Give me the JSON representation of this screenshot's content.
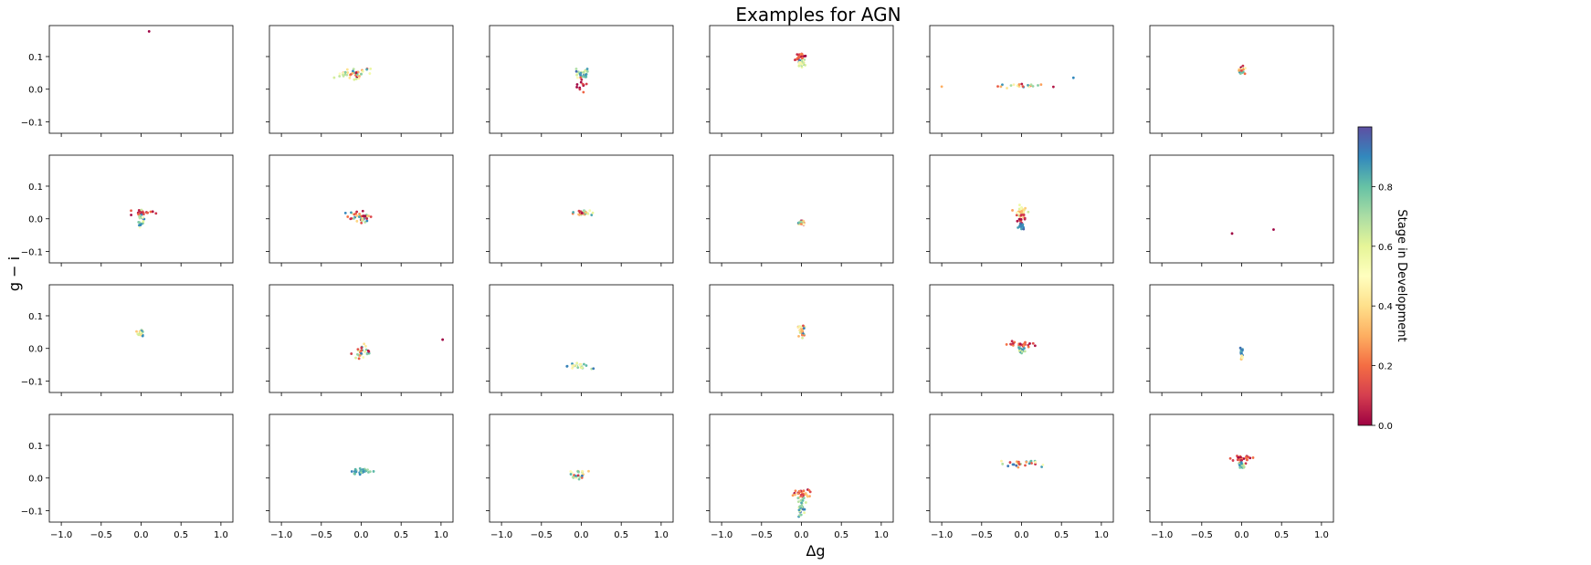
{
  "figure": {
    "title": "Examples for AGN",
    "xlabel": "Δg",
    "ylabel": "g − i",
    "colorbar_label": "Stage in Development"
  },
  "chart_data": {
    "type": "scatter",
    "title": "Examples for AGN",
    "xlabel": "Δg",
    "ylabel": "g − i",
    "layout": {
      "rows": 4,
      "cols": 6
    },
    "xlim": [
      -1.15,
      1.15
    ],
    "ylim": [
      -0.135,
      0.195
    ],
    "xticks": [
      -1.0,
      -0.5,
      0.0,
      0.5,
      1.0
    ],
    "xtick_labels": [
      "−1.0",
      "−0.5",
      "0.0",
      "0.5",
      "1.0"
    ],
    "yticks": [
      -0.1,
      0.0,
      0.1
    ],
    "ytick_labels": [
      "−0.1",
      "0.0",
      "0.1"
    ],
    "colormap": "Spectral",
    "colormap_stops": [
      "#9e0142",
      "#d53e4f",
      "#f46d43",
      "#fdae61",
      "#fee08b",
      "#ffffbf",
      "#e6f598",
      "#abdda4",
      "#66c2a5",
      "#3288bd",
      "#5e4fa2"
    ],
    "colorbar": {
      "label": "Stage in Development",
      "range": [
        0.0,
        1.0
      ],
      "ticks": [
        0.0,
        0.2,
        0.4,
        0.6,
        0.8
      ],
      "tick_labels": [
        "0.0",
        "0.2",
        "0.4",
        "0.6",
        "0.8"
      ]
    },
    "panels": [
      {
        "clusters": [
          {
            "x": 0.1,
            "y": 0.177,
            "sx": 0.0,
            "sy": 0.0,
            "n": 1,
            "c0": 0.0,
            "c1": 0.0
          }
        ]
      },
      {
        "clusters": [
          {
            "x": -0.05,
            "y": 0.048,
            "sx": 0.22,
            "sy": 0.01,
            "n": 40,
            "c0": 0.0,
            "c1": 0.95
          }
        ]
      },
      {
        "clusters": [
          {
            "x": 0.0,
            "y": 0.045,
            "sx": 0.1,
            "sy": 0.008,
            "n": 28,
            "c0": 0.5,
            "c1": 0.95
          },
          {
            "x": 0.0,
            "y": 0.012,
            "sx": 0.06,
            "sy": 0.01,
            "n": 12,
            "c0": 0.0,
            "c1": 0.2
          }
        ]
      },
      {
        "clusters": [
          {
            "x": 0.0,
            "y": 0.1,
            "sx": 0.07,
            "sy": 0.006,
            "n": 20,
            "c0": 0.0,
            "c1": 0.25
          },
          {
            "x": 0.0,
            "y": 0.08,
            "sx": 0.05,
            "sy": 0.007,
            "n": 25,
            "c0": 0.3,
            "c1": 0.95
          }
        ]
      },
      {
        "clusters": [
          {
            "x": -0.05,
            "y": 0.012,
            "sx": 0.3,
            "sy": 0.004,
            "n": 20,
            "c0": 0.0,
            "c1": 0.95
          },
          {
            "x": -1.0,
            "y": 0.008,
            "sx": 0.0,
            "sy": 0.0,
            "n": 1,
            "c0": 0.3,
            "c1": 0.3
          },
          {
            "x": 0.65,
            "y": 0.035,
            "sx": 0.0,
            "sy": 0.0,
            "n": 1,
            "c0": 0.9,
            "c1": 0.9
          }
        ]
      },
      {
        "clusters": [
          {
            "x": 0.0,
            "y": 0.058,
            "sx": 0.04,
            "sy": 0.005,
            "n": 18,
            "c0": 0.0,
            "c1": 0.95
          }
        ]
      },
      {
        "clusters": [
          {
            "x": 0.02,
            "y": 0.018,
            "sx": 0.12,
            "sy": 0.005,
            "n": 20,
            "c0": 0.0,
            "c1": 0.2
          },
          {
            "x": 0.0,
            "y": -0.005,
            "sx": 0.05,
            "sy": 0.01,
            "n": 25,
            "c0": 0.5,
            "c1": 0.95
          }
        ]
      },
      {
        "clusters": [
          {
            "x": 0.0,
            "y": 0.005,
            "sx": 0.15,
            "sy": 0.008,
            "n": 45,
            "c0": 0.0,
            "c1": 0.95
          }
        ]
      },
      {
        "clusters": [
          {
            "x": 0.0,
            "y": 0.018,
            "sx": 0.15,
            "sy": 0.004,
            "n": 30,
            "c0": 0.0,
            "c1": 0.95
          }
        ]
      },
      {
        "clusters": [
          {
            "x": 0.0,
            "y": -0.012,
            "sx": 0.05,
            "sy": 0.004,
            "n": 18,
            "c0": 0.0,
            "c1": 0.95
          }
        ]
      },
      {
        "clusters": [
          {
            "x": 0.0,
            "y": 0.022,
            "sx": 0.08,
            "sy": 0.008,
            "n": 25,
            "c0": 0.25,
            "c1": 0.65
          },
          {
            "x": 0.0,
            "y": 0.0,
            "sx": 0.04,
            "sy": 0.008,
            "n": 15,
            "c0": 0.0,
            "c1": 0.15
          },
          {
            "x": 0.0,
            "y": -0.022,
            "sx": 0.04,
            "sy": 0.005,
            "n": 15,
            "c0": 0.85,
            "c1": 0.98
          }
        ]
      },
      {
        "clusters": [
          {
            "x": -0.12,
            "y": -0.045,
            "sx": 0.0,
            "sy": 0.0,
            "n": 1,
            "c0": 0.0,
            "c1": 0.0
          },
          {
            "x": 0.4,
            "y": -0.033,
            "sx": 0.0,
            "sy": 0.0,
            "n": 1,
            "c0": 0.0,
            "c1": 0.0
          }
        ]
      },
      {
        "clusters": [
          {
            "x": 0.0,
            "y": 0.047,
            "sx": 0.04,
            "sy": 0.005,
            "n": 25,
            "c0": 0.3,
            "c1": 0.95
          }
        ]
      },
      {
        "clusters": [
          {
            "x": 0.0,
            "y": -0.01,
            "sx": 0.12,
            "sy": 0.01,
            "n": 30,
            "c0": 0.0,
            "c1": 0.95
          },
          {
            "x": 1.02,
            "y": 0.027,
            "sx": 0.0,
            "sy": 0.0,
            "n": 1,
            "c0": 0.0,
            "c1": 0.0
          }
        ]
      },
      {
        "clusters": [
          {
            "x": -0.05,
            "y": -0.056,
            "sx": 0.15,
            "sy": 0.004,
            "n": 25,
            "c0": 0.4,
            "c1": 0.95
          }
        ]
      },
      {
        "clusters": [
          {
            "x": 0.0,
            "y": 0.05,
            "sx": 0.04,
            "sy": 0.008,
            "n": 28,
            "c0": 0.0,
            "c1": 0.95
          }
        ]
      },
      {
        "clusters": [
          {
            "x": 0.0,
            "y": 0.012,
            "sx": 0.18,
            "sy": 0.004,
            "n": 25,
            "c0": 0.0,
            "c1": 0.25
          },
          {
            "x": 0.0,
            "y": -0.005,
            "sx": 0.04,
            "sy": 0.006,
            "n": 20,
            "c0": 0.5,
            "c1": 0.95
          }
        ]
      },
      {
        "clusters": [
          {
            "x": 0.0,
            "y": -0.008,
            "sx": 0.02,
            "sy": 0.006,
            "n": 15,
            "c0": 0.85,
            "c1": 0.98
          },
          {
            "x": 0.0,
            "y": -0.028,
            "sx": 0.015,
            "sy": 0.004,
            "n": 8,
            "c0": 0.3,
            "c1": 0.5
          }
        ]
      },
      {
        "clusters": []
      },
      {
        "clusters": [
          {
            "x": 0.0,
            "y": 0.02,
            "sx": 0.13,
            "sy": 0.004,
            "n": 35,
            "c0": 0.7,
            "c1": 0.98
          }
        ]
      },
      {
        "clusters": [
          {
            "x": -0.05,
            "y": 0.012,
            "sx": 0.12,
            "sy": 0.008,
            "n": 25,
            "c0": 0.0,
            "c1": 0.95
          }
        ]
      },
      {
        "clusters": [
          {
            "x": 0.0,
            "y": -0.05,
            "sx": 0.12,
            "sy": 0.007,
            "n": 35,
            "c0": 0.0,
            "c1": 0.4
          },
          {
            "x": 0.0,
            "y": -0.09,
            "sx": 0.05,
            "sy": 0.015,
            "n": 30,
            "c0": 0.55,
            "c1": 0.95
          }
        ]
      },
      {
        "clusters": [
          {
            "x": 0.0,
            "y": 0.045,
            "sx": 0.25,
            "sy": 0.005,
            "n": 28,
            "c0": 0.0,
            "c1": 0.95
          }
        ]
      },
      {
        "clusters": [
          {
            "x": 0.0,
            "y": 0.058,
            "sx": 0.12,
            "sy": 0.006,
            "n": 25,
            "c0": 0.0,
            "c1": 0.25
          },
          {
            "x": 0.0,
            "y": 0.038,
            "sx": 0.04,
            "sy": 0.006,
            "n": 18,
            "c0": 0.5,
            "c1": 0.95
          }
        ]
      }
    ]
  }
}
